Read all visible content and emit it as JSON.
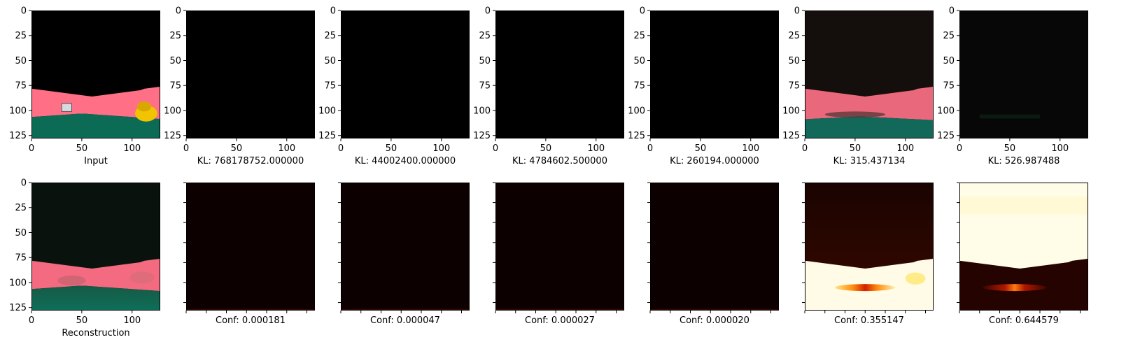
{
  "chart_data": [
    {
      "type": "heatmap",
      "row": 0,
      "col": 0,
      "image": "input-road",
      "label": "Input",
      "xticks": [
        0,
        50,
        100
      ],
      "yticks": [
        0,
        25,
        50,
        75,
        100,
        125
      ],
      "xlim": [
        0,
        128
      ],
      "ylim": [
        128,
        0
      ]
    },
    {
      "type": "heatmap",
      "row": 0,
      "col": 1,
      "image": "black",
      "label": "KL: 768178752.000000",
      "xticks": [
        0,
        50,
        100
      ],
      "yticks": [
        0,
        25,
        50,
        75,
        100,
        125
      ],
      "xlim": [
        0,
        128
      ],
      "ylim": [
        128,
        0
      ]
    },
    {
      "type": "heatmap",
      "row": 0,
      "col": 2,
      "image": "black",
      "label": "KL: 44002400.000000",
      "xticks": [
        0,
        50,
        100
      ],
      "yticks": [
        0,
        25,
        50,
        75,
        100,
        125
      ],
      "xlim": [
        0,
        128
      ],
      "ylim": [
        128,
        0
      ]
    },
    {
      "type": "heatmap",
      "row": 0,
      "col": 3,
      "image": "black",
      "label": "KL: 4784602.500000",
      "xticks": [
        0,
        50,
        100
      ],
      "yticks": [
        0,
        25,
        50,
        75,
        100,
        125
      ],
      "xlim": [
        0,
        128
      ],
      "ylim": [
        128,
        0
      ]
    },
    {
      "type": "heatmap",
      "row": 0,
      "col": 4,
      "image": "black",
      "label": "KL: 260194.000000",
      "xticks": [
        0,
        50,
        100
      ],
      "yticks": [
        0,
        25,
        50,
        75,
        100,
        125
      ],
      "xlim": [
        0,
        128
      ],
      "ylim": [
        128,
        0
      ]
    },
    {
      "type": "heatmap",
      "row": 0,
      "col": 5,
      "image": "faint-road",
      "label": "KL: 315.437134",
      "xticks": [
        0,
        50,
        100
      ],
      "yticks": [
        0,
        25,
        50,
        75,
        100,
        125
      ],
      "xlim": [
        0,
        128
      ],
      "ylim": [
        128,
        0
      ]
    },
    {
      "type": "heatmap",
      "row": 0,
      "col": 6,
      "image": "near-black",
      "label": "KL: 526.987488",
      "xticks": [
        0,
        50,
        100
      ],
      "yticks": [
        0,
        25,
        50,
        75,
        100,
        125
      ],
      "xlim": [
        0,
        128
      ],
      "ylim": [
        128,
        0
      ]
    },
    {
      "type": "heatmap",
      "row": 1,
      "col": 0,
      "image": "reconstruction-road",
      "label": "Reconstruction",
      "xticks": [
        0,
        50,
        100
      ],
      "yticks": [
        0,
        25,
        50,
        75,
        100,
        125
      ],
      "xlim": [
        0,
        128
      ],
      "ylim": [
        128,
        0
      ]
    },
    {
      "type": "heatmap",
      "row": 1,
      "col": 1,
      "image": "conf-dark",
      "label": "Conf: 0.000181",
      "tick_labels": false
    },
    {
      "type": "heatmap",
      "row": 1,
      "col": 2,
      "image": "conf-dark",
      "label": "Conf: 0.000047",
      "tick_labels": false
    },
    {
      "type": "heatmap",
      "row": 1,
      "col": 3,
      "image": "conf-dark",
      "label": "Conf: 0.000027",
      "tick_labels": false
    },
    {
      "type": "heatmap",
      "row": 1,
      "col": 4,
      "image": "conf-dark",
      "label": "Conf: 0.000020",
      "tick_labels": false
    },
    {
      "type": "heatmap",
      "row": 1,
      "col": 5,
      "image": "conf-bottom-hot",
      "label": "Conf: 0.355147",
      "tick_labels": false
    },
    {
      "type": "heatmap",
      "row": 1,
      "col": 6,
      "image": "conf-top-hot",
      "label": "Conf: 0.644579",
      "tick_labels": false
    }
  ],
  "colors": {
    "road_pink": "#ff6f86",
    "grass_green": "#0c6b55",
    "duck_yellow": "#f2c400",
    "conf_dark": "#0c0000",
    "hot_white": "#fffbe6",
    "hot_red": "#d01800",
    "hot_yellow": "#ffe14a"
  }
}
